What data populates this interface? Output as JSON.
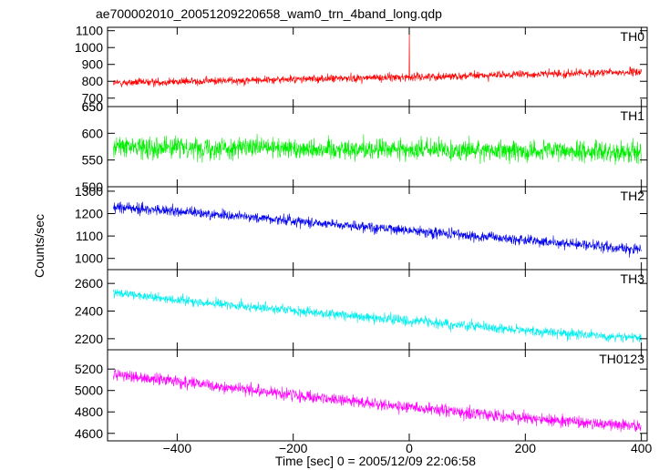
{
  "chart_data": {
    "type": "line",
    "title": "ae700002010_20051209220658_wam0_trn_4band_long.qdp",
    "xlabel": "Time [sec] 0 = 2005/12/09 22:06:58",
    "ylabel": "Counts/sec",
    "xlim": [
      -520,
      410
    ],
    "x_ticks": [
      -400,
      -200,
      0,
      200,
      400
    ],
    "x_tick_labels": [
      "−400",
      "−200",
      "0",
      "200",
      "400"
    ],
    "x_range_data": [
      -510,
      400
    ],
    "grid": false,
    "panels": [
      {
        "name": "TH0",
        "color": "#ff0000",
        "ylim": [
          650,
          1120
        ],
        "yticks": [
          700,
          800,
          900,
          1000,
          1100
        ],
        "ytick_labels": [
          "700",
          "800",
          "900",
          "1000",
          "1100"
        ],
        "ytick_labels_on_edges": [
          "650"
        ],
        "trend": {
          "x": [
            -510,
            -300,
            0,
            200,
            400
          ],
          "y": [
            790,
            805,
            825,
            840,
            855
          ]
        },
        "scatter_amplitude": 30,
        "spike": {
          "x": 0,
          "y": 1120
        }
      },
      {
        "name": "TH1",
        "color": "#00ee00",
        "ylim": [
          500,
          650
        ],
        "yticks": [
          550,
          600
        ],
        "ytick_labels": [
          "550",
          "600"
        ],
        "ytick_labels_on_edges": [
          "650",
          "500"
        ],
        "trend": {
          "x": [
            -510,
            400
          ],
          "y": [
            575,
            565
          ]
        },
        "scatter_amplitude": 25
      },
      {
        "name": "TH2",
        "color": "#0000ee",
        "ylim": [
          950,
          1320
        ],
        "yticks": [
          1000,
          1100,
          1200,
          1300
        ],
        "ytick_labels": [
          "1000",
          "1100",
          "1200",
          "1300"
        ],
        "trend": {
          "x": [
            -510,
            -300,
            0,
            200,
            400
          ],
          "y": [
            1230,
            1190,
            1125,
            1080,
            1040
          ]
        },
        "scatter_amplitude": 30
      },
      {
        "name": "TH3",
        "color": "#00eeee",
        "ylim": [
          2120,
          2700
        ],
        "yticks": [
          2200,
          2400,
          2600
        ],
        "ytick_labels": [
          "2200",
          "2400",
          "2600"
        ],
        "trend": {
          "x": [
            -510,
            -300,
            0,
            200,
            400
          ],
          "y": [
            2530,
            2440,
            2330,
            2260,
            2200
          ]
        },
        "scatter_amplitude": 45
      },
      {
        "name": "TH0123",
        "color": "#ff00ff",
        "ylim": [
          4530,
          5380
        ],
        "yticks": [
          4600,
          4800,
          5000,
          5200
        ],
        "ytick_labels": [
          "4600",
          "4800",
          "5000",
          "5200"
        ],
        "trend": {
          "x": [
            -510,
            -300,
            0,
            200,
            400
          ],
          "y": [
            5150,
            5020,
            4840,
            4740,
            4660
          ]
        },
        "scatter_amplitude": 70
      }
    ]
  }
}
